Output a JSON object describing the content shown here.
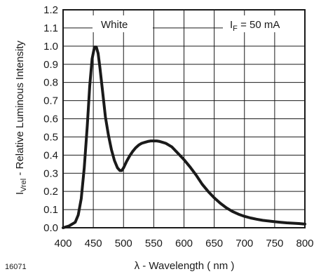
{
  "figure_id": "16071",
  "chart_data": {
    "type": "line",
    "xlabel_symbol": "λ",
    "xlabel_text": " - Wavelength ( nm )",
    "ylabel_main": "I",
    "ylabel_sub": "Vrel",
    "ylabel_text": " - Relative Luminous Intensity",
    "xlim": [
      400,
      800
    ],
    "ylim": [
      0,
      1.2
    ],
    "x_ticks": [
      "400",
      "450",
      "500",
      "550",
      "600",
      "650",
      "700",
      "750",
      "800"
    ],
    "y_ticks": [
      "0.0",
      "0.1",
      "0.2",
      "0.3",
      "0.4",
      "0.5",
      "0.6",
      "0.7",
      "0.8",
      "0.9",
      "1.0",
      "1.1",
      "1.2"
    ],
    "grid": true,
    "annotations": {
      "series_label": "White",
      "condition_main": "I",
      "condition_sub": "F",
      "condition_text": " = 50 mA"
    },
    "series": [
      {
        "color": "#1a1a1a",
        "x": [
          400,
          410,
          420,
          425,
          430,
          435,
          440,
          444,
          448,
          452,
          455,
          458,
          461,
          465,
          470,
          475,
          480,
          485,
          490,
          494,
          497,
          500,
          505,
          510,
          515,
          520,
          525,
          530,
          535,
          540,
          545,
          550,
          555,
          560,
          565,
          570,
          575,
          580,
          590,
          600,
          610,
          620,
          630,
          640,
          650,
          660,
          670,
          680,
          690,
          700,
          710,
          720,
          730,
          740,
          750,
          760,
          770,
          780,
          790,
          800
        ],
        "y": [
          0.0,
          0.01,
          0.03,
          0.07,
          0.16,
          0.33,
          0.56,
          0.78,
          0.93,
          0.995,
          0.995,
          0.96,
          0.88,
          0.76,
          0.61,
          0.51,
          0.43,
          0.37,
          0.33,
          0.315,
          0.315,
          0.33,
          0.365,
          0.395,
          0.42,
          0.44,
          0.455,
          0.465,
          0.47,
          0.475,
          0.478,
          0.478,
          0.478,
          0.475,
          0.47,
          0.465,
          0.455,
          0.445,
          0.41,
          0.375,
          0.335,
          0.29,
          0.24,
          0.2,
          0.165,
          0.135,
          0.11,
          0.09,
          0.075,
          0.063,
          0.054,
          0.047,
          0.041,
          0.037,
          0.033,
          0.03,
          0.027,
          0.025,
          0.023,
          0.02
        ]
      }
    ]
  }
}
